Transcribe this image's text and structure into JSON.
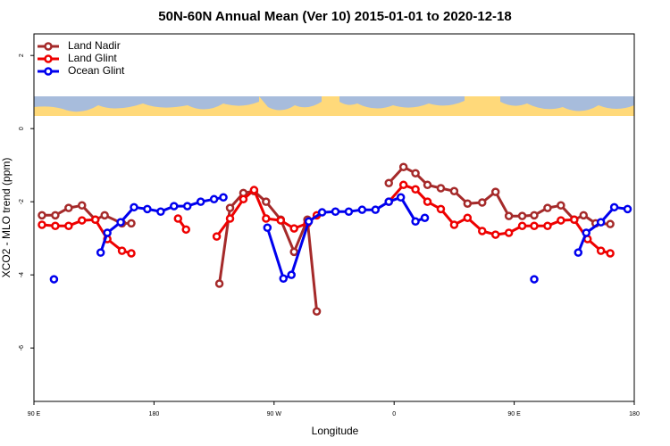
{
  "chart_data": {
    "type": "line",
    "title": "50N-60N Annual Mean (Ver 10)   2015-01-01 to 2020-12-18",
    "xlabel": "Longitude",
    "ylabel": "XCO2 - MLO trend (ppm)",
    "xlim": [
      90,
      540
    ],
    "ylim": [
      -7.46,
      2.59
    ],
    "xticks": [
      {
        "value": 90,
        "label": "90 E"
      },
      180,
      {
        "value": 270,
        "label": "90 W"
      },
      {
        "value": 360,
        "label": "0"
      },
      {
        "value": 450,
        "label": "90 E"
      },
      {
        "value": 540,
        "label": "180"
      }
    ],
    "yticks": [
      -6,
      -4,
      -2,
      0,
      2
    ],
    "legend": "top-left",
    "series": [
      {
        "name": "Land Nadir",
        "color": "#a52a2a",
        "x": [
          96,
          106,
          116,
          126,
          136,
          143,
          156,
          163,
          null,
          229,
          237,
          247,
          255,
          264,
          275,
          285,
          295,
          302,
          null,
          356,
          367,
          376,
          385,
          395,
          405,
          415,
          426,
          436,
          446,
          456,
          465,
          475,
          485,
          495,
          502,
          511,
          522
        ],
        "values": [
          -2.37,
          -2.37,
          -2.17,
          -2.1,
          -2.49,
          -2.37,
          -2.59,
          -2.59,
          null,
          -4.24,
          -2.17,
          -1.76,
          -1.71,
          -2.0,
          -2.49,
          -3.37,
          -2.49,
          -5.0,
          null,
          -1.49,
          -1.05,
          -1.22,
          -1.54,
          -1.63,
          -1.71,
          -2.05,
          -2.02,
          -1.73,
          -2.39,
          -2.39,
          -2.37,
          -2.17,
          -2.1,
          -2.49,
          -2.37,
          -2.59,
          -2.61
        ]
      },
      {
        "name": "Land Glint",
        "color": "#ee0000",
        "x": [
          96,
          106,
          116,
          126,
          136,
          145,
          156,
          163,
          null,
          198,
          204,
          null,
          227,
          237,
          247,
          255,
          264,
          275,
          285,
          295,
          302,
          null,
          356,
          367,
          376,
          385,
          395,
          405,
          415,
          426,
          436,
          446,
          456,
          465,
          475,
          485,
          495,
          505,
          515,
          522
        ],
        "values": [
          -2.63,
          -2.66,
          -2.66,
          -2.51,
          -2.49,
          -3.02,
          -3.34,
          -3.41,
          null,
          -2.46,
          -2.76,
          null,
          -2.95,
          -2.46,
          -1.93,
          -1.68,
          -2.46,
          -2.51,
          -2.73,
          -2.59,
          -2.37,
          null,
          -2.0,
          -1.54,
          -1.66,
          -2.0,
          -2.2,
          -2.63,
          -2.44,
          -2.8,
          -2.9,
          -2.85,
          -2.66,
          -2.66,
          -2.66,
          -2.51,
          -2.49,
          -3.02,
          -3.34,
          -3.41
        ]
      },
      {
        "name": "Ocean Glint",
        "color": "#0000ee",
        "x": [
          105,
          null,
          140,
          145,
          155,
          165,
          175,
          185,
          195,
          205,
          215,
          225,
          232,
          null,
          265,
          277,
          283,
          296,
          306,
          316,
          326,
          336,
          346,
          356,
          365,
          376,
          383,
          null,
          465,
          null,
          498,
          504,
          515,
          525,
          535
        ],
        "values": [
          -4.12,
          null,
          -3.39,
          -2.85,
          -2.56,
          -2.15,
          -2.2,
          -2.27,
          -2.12,
          -2.12,
          -2.0,
          -1.93,
          -1.88,
          null,
          -2.71,
          -4.1,
          -4.0,
          -2.54,
          -2.29,
          -2.27,
          -2.27,
          -2.22,
          -2.22,
          -2.0,
          -1.88,
          -2.54,
          -2.44,
          null,
          -4.12,
          null,
          -3.39,
          -2.85,
          -2.56,
          -2.15,
          -2.2
        ]
      }
    ]
  }
}
